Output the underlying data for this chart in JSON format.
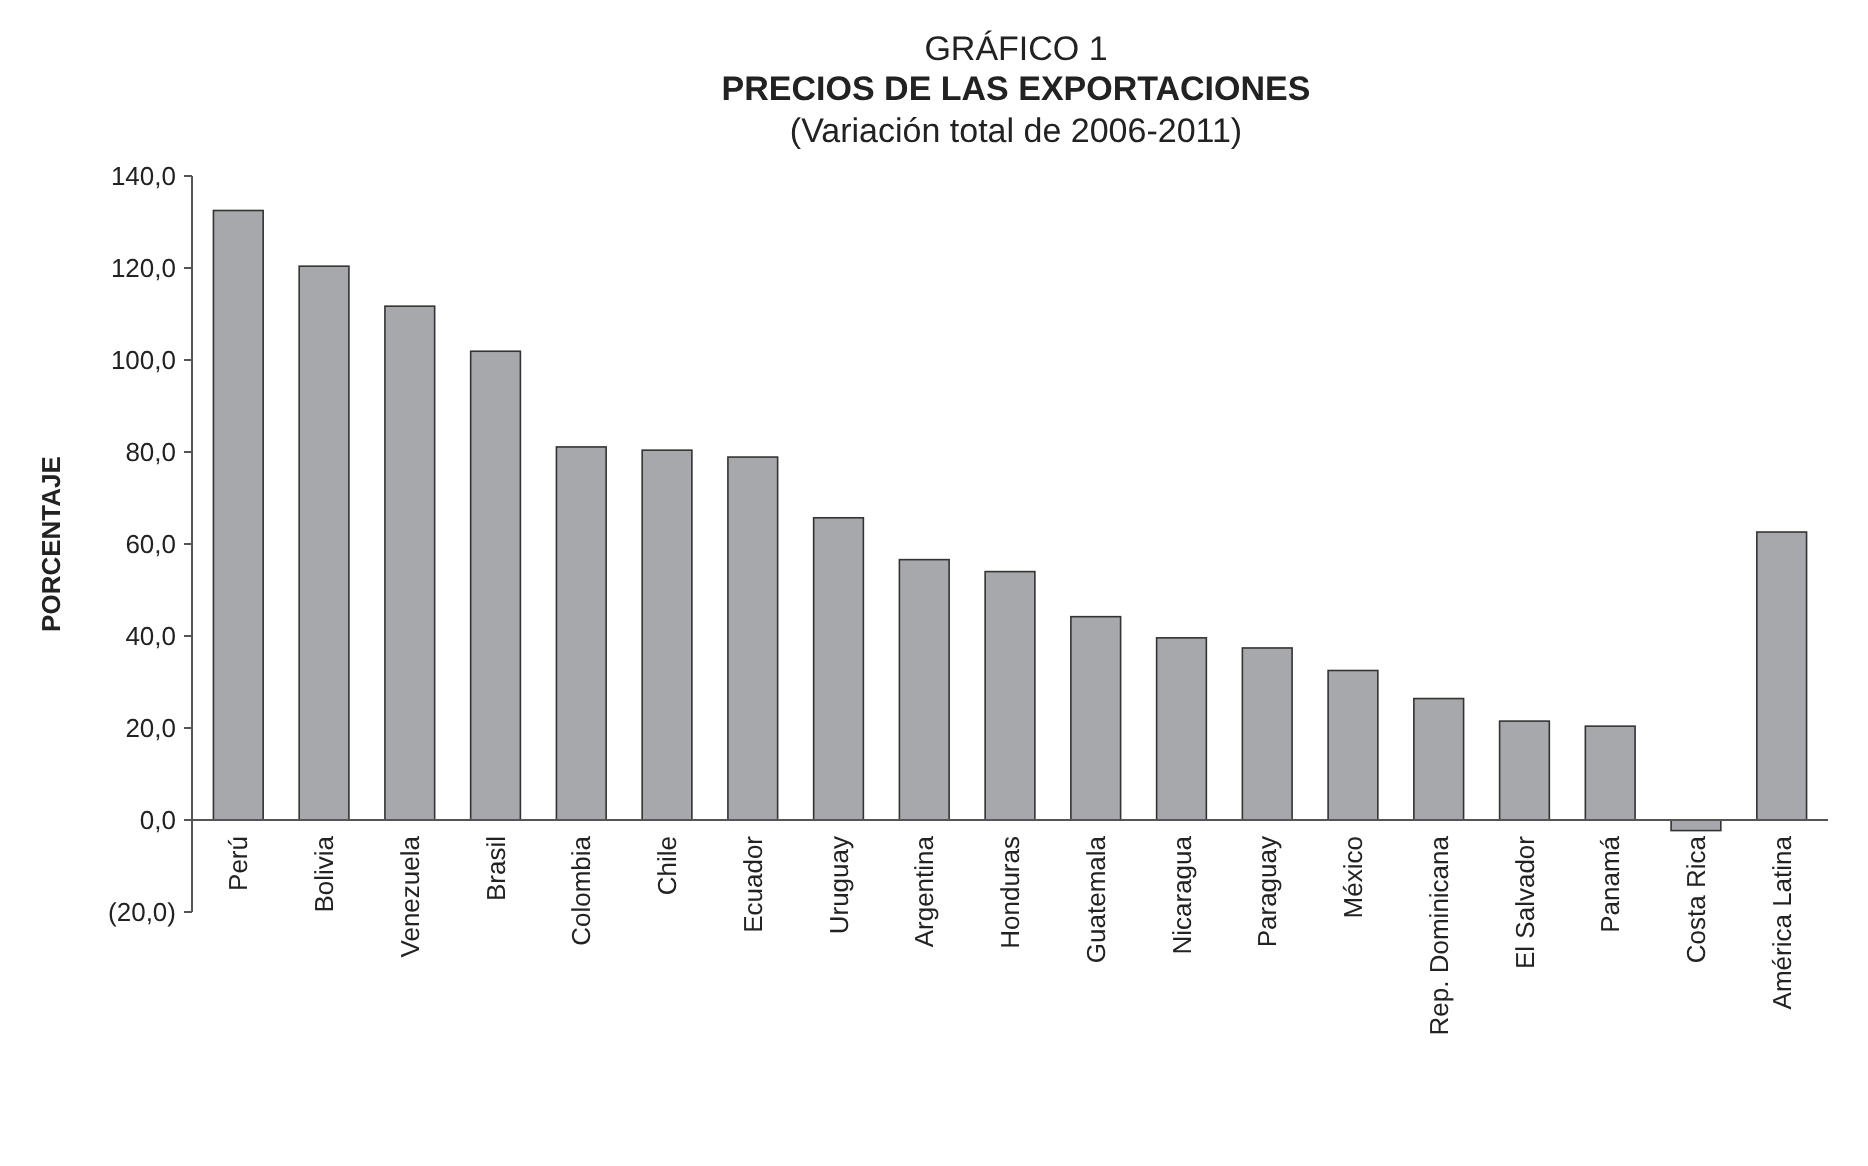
{
  "chart_data": {
    "type": "bar",
    "title": "PRECIOS DE LAS EXPORTACIONES",
    "subtitle": "(Variación total de 2006-2011)",
    "annotations": [
      "GRÁFICO 1"
    ],
    "ylabel": "PORCENTAJE",
    "categories": [
      "Perú",
      "Bolivia",
      "Venezuela",
      "Brasil",
      "Colombia",
      "Chile",
      "Ecuador",
      "Uruguay",
      "Argentina",
      "Honduras",
      "Guatemala",
      "Nicaragua",
      "Paraguay",
      "México",
      "Rep. Dominicana",
      "El Salvador",
      "Panamá",
      "Costa Rica",
      "América Latina"
    ],
    "values": [
      132.5,
      120.4,
      111.7,
      101.9,
      81.1,
      80.4,
      78.9,
      65.7,
      56.6,
      54.0,
      44.2,
      39.6,
      37.4,
      32.5,
      26.4,
      21.5,
      20.4,
      -2.3,
      62.6
    ],
    "color": "#a7a8ac",
    "ylim": [
      -20,
      140
    ],
    "yticks": [
      {
        "value": -20,
        "label": "(20,0)"
      },
      {
        "value": 0,
        "label": "0,0"
      },
      {
        "value": 20,
        "label": "20,0"
      },
      {
        "value": 40,
        "label": "40,0"
      },
      {
        "value": 60,
        "label": "60,0"
      },
      {
        "value": 80,
        "label": "80,0"
      },
      {
        "value": 100,
        "label": "100,0"
      },
      {
        "value": 120,
        "label": "120,0"
      },
      {
        "value": 140,
        "label": "140,0"
      }
    ],
    "grid": false
  }
}
